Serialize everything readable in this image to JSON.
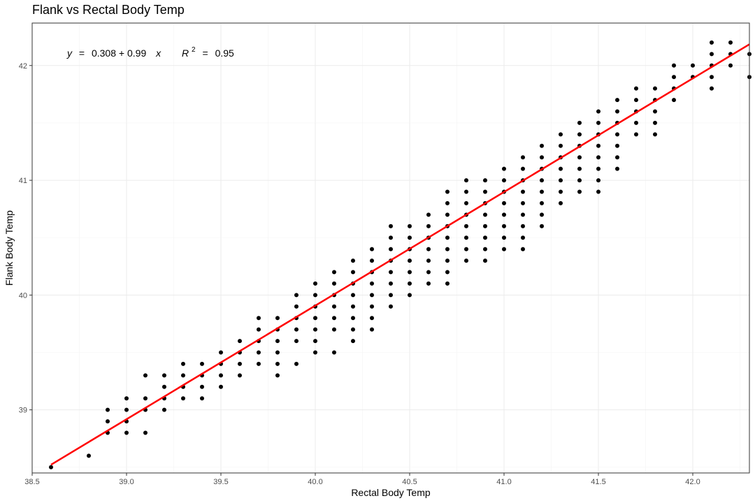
{
  "chart_data": {
    "type": "scatter",
    "title": "Flank vs Rectal Body Temp",
    "xlabel": "Rectal Body Temp",
    "ylabel": "Flank Body Temp",
    "xlim": [
      38.5,
      42.3
    ],
    "ylim": [
      38.45,
      42.37
    ],
    "x_ticks": [
      "38.5",
      "39.0",
      "39.5",
      "40.0",
      "40.5",
      "41.0",
      "41.5",
      "42.0"
    ],
    "y_ticks": [
      "39",
      "40",
      "41",
      "42"
    ],
    "grid": true,
    "point_color": "#000000",
    "fit_line": {
      "intercept": 0.308,
      "slope": 0.99,
      "color": "#ff0000",
      "x_range": [
        38.6,
        42.3
      ]
    },
    "annotation": {
      "y_var": "y",
      "equals": "=",
      "intercept_text": "0.308",
      "plus": "+",
      "slope_text": "0.99",
      "x_var": "x",
      "r2_var": "R",
      "r2_sup": "2",
      "r2_value": "0.95"
    },
    "points": [
      [
        38.6,
        38.5
      ],
      [
        38.8,
        38.6
      ],
      [
        38.9,
        38.8
      ],
      [
        38.9,
        38.9
      ],
      [
        38.9,
        39.0
      ],
      [
        39.0,
        38.8
      ],
      [
        39.0,
        38.9
      ],
      [
        39.0,
        39.0
      ],
      [
        39.0,
        39.1
      ],
      [
        39.1,
        38.8
      ],
      [
        39.1,
        39.0
      ],
      [
        39.1,
        39.1
      ],
      [
        39.1,
        39.3
      ],
      [
        39.2,
        39.0
      ],
      [
        39.2,
        39.1
      ],
      [
        39.2,
        39.2
      ],
      [
        39.2,
        39.3
      ],
      [
        39.3,
        39.1
      ],
      [
        39.3,
        39.2
      ],
      [
        39.3,
        39.3
      ],
      [
        39.3,
        39.4
      ],
      [
        39.4,
        39.1
      ],
      [
        39.4,
        39.2
      ],
      [
        39.4,
        39.3
      ],
      [
        39.4,
        39.4
      ],
      [
        39.5,
        39.2
      ],
      [
        39.5,
        39.3
      ],
      [
        39.5,
        39.4
      ],
      [
        39.5,
        39.5
      ],
      [
        39.6,
        39.3
      ],
      [
        39.6,
        39.4
      ],
      [
        39.6,
        39.5
      ],
      [
        39.6,
        39.6
      ],
      [
        39.7,
        39.4
      ],
      [
        39.7,
        39.5
      ],
      [
        39.7,
        39.6
      ],
      [
        39.7,
        39.7
      ],
      [
        39.7,
        39.8
      ],
      [
        39.8,
        39.3
      ],
      [
        39.8,
        39.4
      ],
      [
        39.8,
        39.5
      ],
      [
        39.8,
        39.6
      ],
      [
        39.8,
        39.7
      ],
      [
        39.8,
        39.8
      ],
      [
        39.9,
        39.4
      ],
      [
        39.9,
        39.6
      ],
      [
        39.9,
        39.7
      ],
      [
        39.9,
        39.8
      ],
      [
        39.9,
        39.9
      ],
      [
        39.9,
        40.0
      ],
      [
        40.0,
        39.5
      ],
      [
        40.0,
        39.6
      ],
      [
        40.0,
        39.7
      ],
      [
        40.0,
        39.8
      ],
      [
        40.0,
        39.9
      ],
      [
        40.0,
        40.0
      ],
      [
        40.0,
        40.1
      ],
      [
        40.1,
        39.5
      ],
      [
        40.1,
        39.7
      ],
      [
        40.1,
        39.8
      ],
      [
        40.1,
        39.9
      ],
      [
        40.1,
        40.0
      ],
      [
        40.1,
        40.1
      ],
      [
        40.1,
        40.2
      ],
      [
        40.2,
        39.6
      ],
      [
        40.2,
        39.7
      ],
      [
        40.2,
        39.8
      ],
      [
        40.2,
        39.9
      ],
      [
        40.2,
        40.0
      ],
      [
        40.2,
        40.1
      ],
      [
        40.2,
        40.2
      ],
      [
        40.2,
        40.3
      ],
      [
        40.3,
        39.7
      ],
      [
        40.3,
        39.8
      ],
      [
        40.3,
        39.9
      ],
      [
        40.3,
        40.0
      ],
      [
        40.3,
        40.1
      ],
      [
        40.3,
        40.2
      ],
      [
        40.3,
        40.3
      ],
      [
        40.3,
        40.4
      ],
      [
        40.4,
        39.9
      ],
      [
        40.4,
        40.0
      ],
      [
        40.4,
        40.1
      ],
      [
        40.4,
        40.2
      ],
      [
        40.4,
        40.3
      ],
      [
        40.4,
        40.4
      ],
      [
        40.4,
        40.5
      ],
      [
        40.4,
        40.6
      ],
      [
        40.5,
        40.0
      ],
      [
        40.5,
        40.1
      ],
      [
        40.5,
        40.2
      ],
      [
        40.5,
        40.3
      ],
      [
        40.5,
        40.4
      ],
      [
        40.5,
        40.5
      ],
      [
        40.5,
        40.6
      ],
      [
        40.6,
        40.1
      ],
      [
        40.6,
        40.2
      ],
      [
        40.6,
        40.3
      ],
      [
        40.6,
        40.4
      ],
      [
        40.6,
        40.5
      ],
      [
        40.6,
        40.6
      ],
      [
        40.6,
        40.7
      ],
      [
        40.7,
        40.1
      ],
      [
        40.7,
        40.2
      ],
      [
        40.7,
        40.3
      ],
      [
        40.7,
        40.4
      ],
      [
        40.7,
        40.5
      ],
      [
        40.7,
        40.6
      ],
      [
        40.7,
        40.7
      ],
      [
        40.7,
        40.8
      ],
      [
        40.7,
        40.9
      ],
      [
        40.8,
        40.3
      ],
      [
        40.8,
        40.4
      ],
      [
        40.8,
        40.5
      ],
      [
        40.8,
        40.6
      ],
      [
        40.8,
        40.7
      ],
      [
        40.8,
        40.8
      ],
      [
        40.8,
        40.9
      ],
      [
        40.8,
        41.0
      ],
      [
        40.9,
        40.3
      ],
      [
        40.9,
        40.4
      ],
      [
        40.9,
        40.5
      ],
      [
        40.9,
        40.6
      ],
      [
        40.9,
        40.7
      ],
      [
        40.9,
        40.8
      ],
      [
        40.9,
        40.9
      ],
      [
        40.9,
        41.0
      ],
      [
        41.0,
        40.4
      ],
      [
        41.0,
        40.5
      ],
      [
        41.0,
        40.6
      ],
      [
        41.0,
        40.7
      ],
      [
        41.0,
        40.8
      ],
      [
        41.0,
        40.9
      ],
      [
        41.0,
        41.0
      ],
      [
        41.0,
        41.1
      ],
      [
        41.1,
        40.4
      ],
      [
        41.1,
        40.5
      ],
      [
        41.1,
        40.6
      ],
      [
        41.1,
        40.7
      ],
      [
        41.1,
        40.8
      ],
      [
        41.1,
        40.9
      ],
      [
        41.1,
        41.0
      ],
      [
        41.1,
        41.1
      ],
      [
        41.1,
        41.2
      ],
      [
        41.2,
        40.6
      ],
      [
        41.2,
        40.7
      ],
      [
        41.2,
        40.8
      ],
      [
        41.2,
        40.9
      ],
      [
        41.2,
        41.0
      ],
      [
        41.2,
        41.1
      ],
      [
        41.2,
        41.2
      ],
      [
        41.2,
        41.3
      ],
      [
        41.3,
        40.8
      ],
      [
        41.3,
        40.9
      ],
      [
        41.3,
        41.0
      ],
      [
        41.3,
        41.1
      ],
      [
        41.3,
        41.2
      ],
      [
        41.3,
        41.3
      ],
      [
        41.3,
        41.4
      ],
      [
        41.4,
        40.9
      ],
      [
        41.4,
        41.0
      ],
      [
        41.4,
        41.1
      ],
      [
        41.4,
        41.2
      ],
      [
        41.4,
        41.3
      ],
      [
        41.4,
        41.4
      ],
      [
        41.4,
        41.5
      ],
      [
        41.5,
        40.9
      ],
      [
        41.5,
        41.0
      ],
      [
        41.5,
        41.1
      ],
      [
        41.5,
        41.2
      ],
      [
        41.5,
        41.3
      ],
      [
        41.5,
        41.4
      ],
      [
        41.5,
        41.5
      ],
      [
        41.5,
        41.6
      ],
      [
        41.6,
        41.1
      ],
      [
        41.6,
        41.2
      ],
      [
        41.6,
        41.3
      ],
      [
        41.6,
        41.4
      ],
      [
        41.6,
        41.5
      ],
      [
        41.6,
        41.6
      ],
      [
        41.6,
        41.7
      ],
      [
        41.7,
        41.4
      ],
      [
        41.7,
        41.5
      ],
      [
        41.7,
        41.6
      ],
      [
        41.7,
        41.7
      ],
      [
        41.7,
        41.8
      ],
      [
        41.8,
        41.4
      ],
      [
        41.8,
        41.5
      ],
      [
        41.8,
        41.6
      ],
      [
        41.8,
        41.7
      ],
      [
        41.8,
        41.8
      ],
      [
        41.9,
        41.7
      ],
      [
        41.9,
        41.8
      ],
      [
        41.9,
        41.9
      ],
      [
        41.9,
        42.0
      ],
      [
        42.0,
        41.9
      ],
      [
        42.0,
        42.0
      ],
      [
        42.1,
        41.8
      ],
      [
        42.1,
        41.9
      ],
      [
        42.1,
        42.0
      ],
      [
        42.1,
        42.1
      ],
      [
        42.1,
        42.2
      ],
      [
        42.2,
        42.0
      ],
      [
        42.2,
        42.1
      ],
      [
        42.2,
        42.2
      ],
      [
        42.3,
        41.9
      ],
      [
        42.3,
        42.1
      ]
    ]
  }
}
